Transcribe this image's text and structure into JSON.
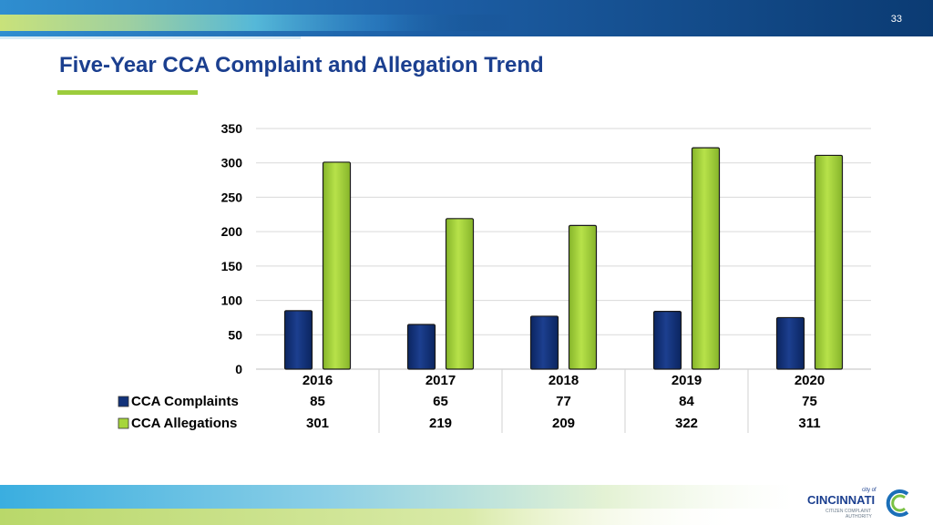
{
  "slide": {
    "page_number": "33",
    "title": "Five-Year CCA Complaint and Allegation Trend"
  },
  "colors": {
    "title": "#1b3f8f",
    "accent_green": "#9ccc3c",
    "complaints_bar": "#12327a",
    "allegations_bar": "#a6d63a",
    "top_band": "#0b3b73"
  },
  "logo": {
    "small_text": "city of",
    "main_text": "CINCINNATI",
    "sub_line1": "CITIZEN COMPLAINT",
    "sub_line2": "AUTHORITY"
  },
  "chart_data": {
    "type": "bar",
    "categories": [
      "2016",
      "2017",
      "2018",
      "2019",
      "2020"
    ],
    "series": [
      {
        "name": "CCA Complaints",
        "values": [
          85,
          65,
          77,
          84,
          75
        ],
        "color": "#12327a"
      },
      {
        "name": "CCA Allegations",
        "values": [
          301,
          219,
          209,
          322,
          311
        ],
        "color": "#a6d63a"
      }
    ],
    "yticks": [
      0,
      50,
      100,
      150,
      200,
      250,
      300,
      350
    ],
    "ylim": [
      0,
      350
    ],
    "grid": true,
    "data_table": true,
    "title": "",
    "xlabel": "",
    "ylabel": ""
  }
}
